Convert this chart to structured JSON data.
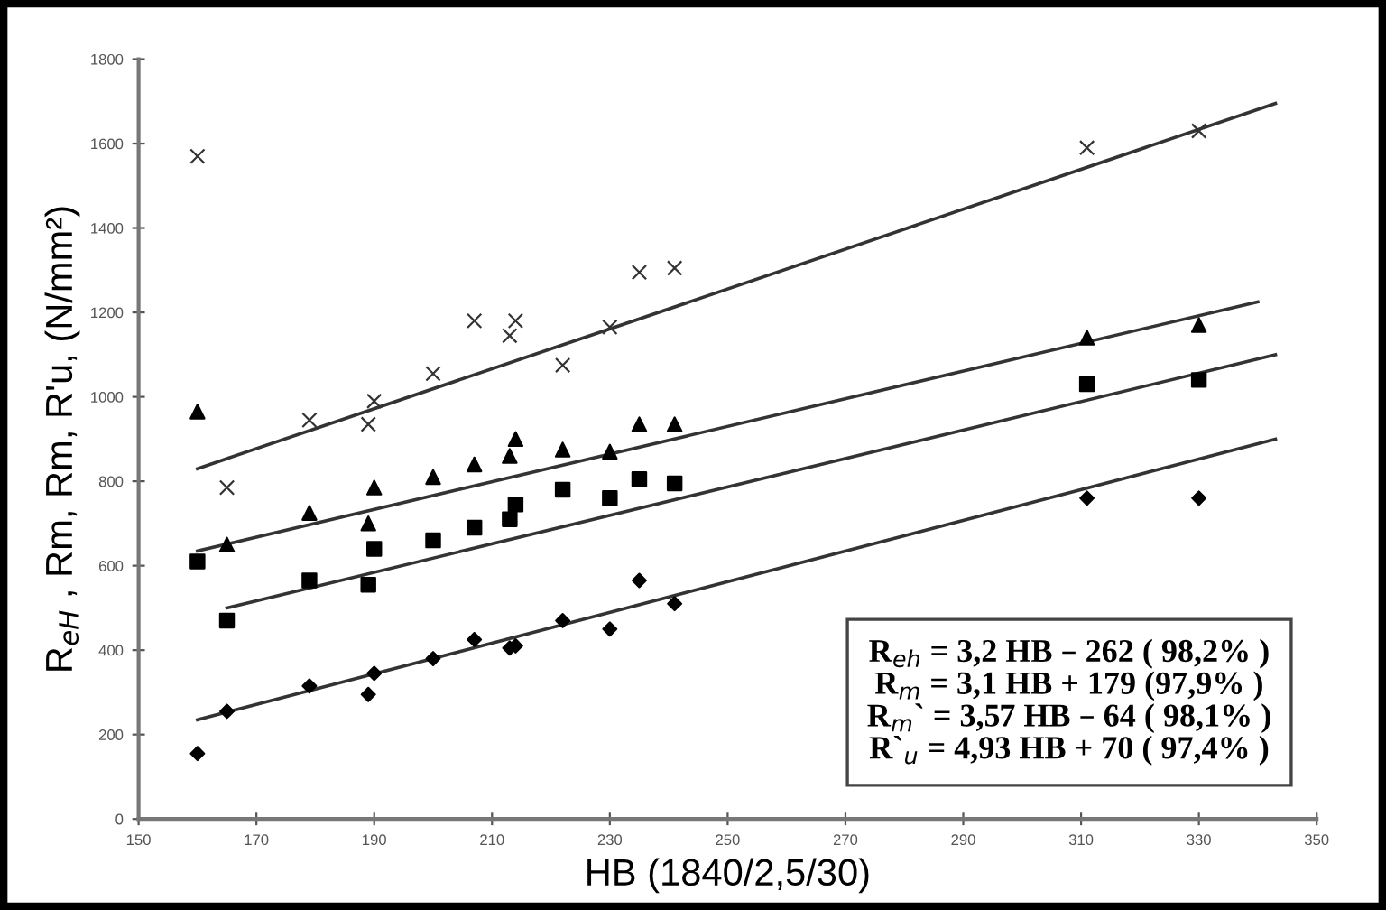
{
  "chart_data": {
    "type": "scatter",
    "xlabel": "HB (1840/2,5/30)",
    "ylabel": "R$_{eH}$ , Rm, Rm, R'u, (N/mm²)",
    "x": [
      160,
      165,
      179,
      189,
      190,
      200,
      207,
      213,
      214,
      222,
      230,
      235,
      241,
      311,
      330
    ],
    "series": [
      {
        "marker": "cross",
        "color": "#333333",
        "values": [
          1570,
          785,
          945,
          935,
          990,
          1055,
          1180,
          1145,
          1180,
          1075,
          1165,
          1295,
          1305,
          1590,
          1630
        ]
      },
      {
        "marker": "triangle",
        "color": "#000000",
        "values": [
          965,
          650,
          725,
          700,
          785,
          810,
          840,
          860,
          900,
          875,
          870,
          935,
          935,
          1140,
          1170
        ]
      },
      {
        "marker": "square",
        "color": "#000000",
        "values": [
          610,
          470,
          565,
          555,
          640,
          660,
          690,
          710,
          745,
          780,
          760,
          805,
          795,
          1030,
          1040
        ]
      },
      {
        "marker": "diamond",
        "color": "#000000",
        "values": [
          155,
          255,
          315,
          295,
          345,
          380,
          425,
          405,
          410,
          470,
          450,
          565,
          510,
          760,
          760
        ]
      },
      {
        "type": "line",
        "color": "#333333",
        "x": [
          160,
          343
        ],
        "values": [
          830,
          1695
        ]
      },
      {
        "type": "line",
        "color": "#333333",
        "x": [
          160,
          340
        ],
        "values": [
          635,
          1225
        ]
      },
      {
        "type": "line",
        "color": "#333333",
        "x": [
          165,
          343
        ],
        "values": [
          500,
          1100
        ]
      },
      {
        "type": "line",
        "color": "#333333",
        "x": [
          160,
          343
        ],
        "values": [
          235,
          900
        ]
      }
    ],
    "xlim": [
      150,
      350
    ],
    "xticks": [
      150,
      170,
      190,
      210,
      230,
      250,
      270,
      290,
      310,
      330,
      350
    ],
    "ylim": [
      0,
      1800
    ],
    "yticks": [
      0,
      200,
      400,
      600,
      800,
      1000,
      1200,
      1400,
      1600,
      1800
    ],
    "grid": false,
    "legend": false,
    "annotations": [
      "R$_{eh}$ = 3,2 HB – 262 ( 98,2% )",
      "R$_{m}$ = 3,1 HB + 179 (97,9% )",
      "R$_{m}$` = 3,57 HB – 64 ( 98,1% )",
      "R`$_{u}$ = 4,93 HB + 70 ( 97,4% )"
    ]
  }
}
